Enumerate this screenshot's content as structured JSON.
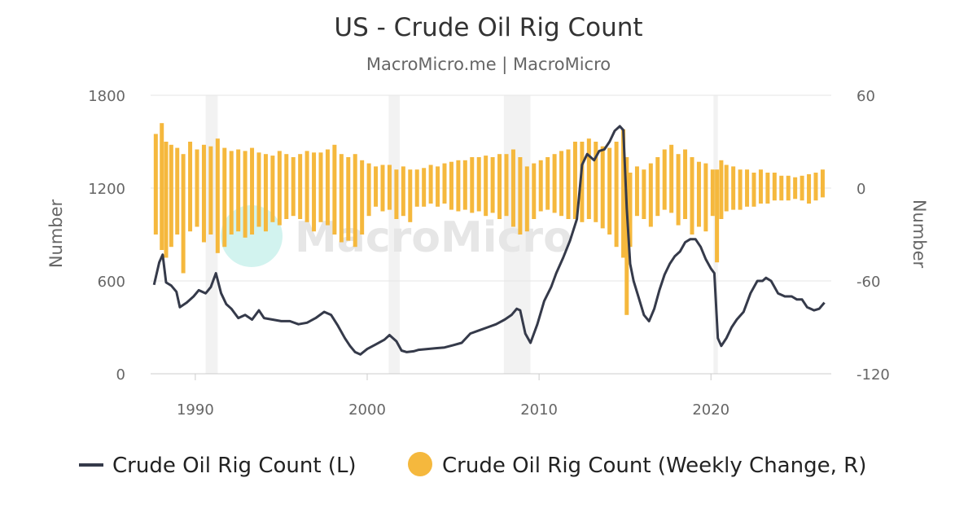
{
  "chart_data": {
    "type": "line",
    "title": "US - Crude Oil Rig Count",
    "subtitle": "MacroMicro.me | MacroMicro",
    "watermark": "MacroMicro",
    "x_ticks": [
      1990,
      2000,
      2010,
      2020
    ],
    "xlim": [
      1987.4,
      2027.0
    ],
    "left_axis": {
      "label": "Number",
      "ticks": [
        "0",
        "600",
        "1200",
        "1800"
      ],
      "ylim": [
        0,
        1800
      ]
    },
    "right_axis": {
      "label": "Number",
      "ticks": [
        "-120",
        "-60",
        "0",
        "60"
      ],
      "ylim": [
        -120,
        60
      ]
    },
    "grid": true,
    "legend_position": "bottom",
    "recession_bands": [
      [
        1990.6,
        1991.3
      ],
      [
        2001.25,
        2001.9
      ],
      [
        2007.95,
        2009.5
      ],
      [
        2020.15,
        2020.4
      ]
    ],
    "series": [
      {
        "name": "Crude Oil Rig Count (L)",
        "type": "line",
        "axis": "left",
        "color": "#353a4a",
        "x": [
          1987.6,
          1987.9,
          1988.1,
          1988.3,
          1988.6,
          1988.9,
          1989.1,
          1989.5,
          1989.9,
          1990.2,
          1990.6,
          1990.9,
          1991.2,
          1991.5,
          1991.8,
          1992.1,
          1992.5,
          1992.9,
          1993.3,
          1993.7,
          1994.0,
          1994.5,
          1995.0,
          1995.5,
          1996.0,
          1996.5,
          1997.0,
          1997.5,
          1997.9,
          1998.3,
          1998.7,
          1999.0,
          1999.3,
          1999.6,
          2000.0,
          2000.5,
          2001.0,
          2001.3,
          2001.7,
          2002.0,
          2002.3,
          2002.7,
          2003.0,
          2003.5,
          2004.0,
          2004.5,
          2005.0,
          2005.5,
          2006.0,
          2006.5,
          2007.0,
          2007.5,
          2008.0,
          2008.4,
          2008.7,
          2008.9,
          2009.2,
          2009.5,
          2009.9,
          2010.3,
          2010.7,
          2011.0,
          2011.4,
          2011.8,
          2012.2,
          2012.5,
          2012.8,
          2013.2,
          2013.5,
          2013.8,
          2014.1,
          2014.4,
          2014.7,
          2014.9,
          2015.1,
          2015.3,
          2015.5,
          2015.8,
          2016.1,
          2016.4,
          2016.7,
          2017.0,
          2017.3,
          2017.6,
          2017.9,
          2018.2,
          2018.5,
          2018.8,
          2019.1,
          2019.4,
          2019.7,
          2020.0,
          2020.2,
          2020.4,
          2020.6,
          2020.9,
          2021.2,
          2021.5,
          2021.9,
          2022.3,
          2022.7,
          2023.0,
          2023.2,
          2023.5,
          2023.9,
          2024.3,
          2024.7,
          2025.0,
          2025.3,
          2025.6,
          2026.0,
          2026.3,
          2026.6
        ],
        "values": [
          575,
          720,
          770,
          590,
          570,
          530,
          430,
          460,
          500,
          540,
          520,
          560,
          650,
          520,
          450,
          420,
          360,
          380,
          350,
          410,
          360,
          350,
          340,
          340,
          320,
          330,
          360,
          400,
          380,
          310,
          230,
          180,
          140,
          125,
          160,
          190,
          220,
          250,
          210,
          150,
          140,
          145,
          155,
          160,
          165,
          170,
          185,
          200,
          260,
          280,
          300,
          320,
          350,
          380,
          420,
          410,
          260,
          200,
          320,
          470,
          560,
          650,
          750,
          860,
          1000,
          1350,
          1420,
          1380,
          1440,
          1450,
          1500,
          1570,
          1600,
          1575,
          1070,
          710,
          600,
          490,
          380,
          340,
          420,
          540,
          640,
          710,
          760,
          790,
          850,
          870,
          870,
          820,
          740,
          680,
          650,
          230,
          180,
          230,
          300,
          350,
          400,
          520,
          600,
          600,
          620,
          600,
          520,
          500,
          500,
          480,
          480,
          430,
          410,
          420,
          460
        ]
      },
      {
        "name": "Crude Oil Rig Count (Weekly Change, R)",
        "type": "bar",
        "axis": "right",
        "color": "#f5b83d",
        "x": [
          1987.7,
          1988.05,
          1988.3,
          1988.6,
          1988.95,
          1989.3,
          1989.7,
          1990.1,
          1990.5,
          1990.9,
          1991.3,
          1991.7,
          1992.1,
          1992.5,
          1992.9,
          1993.3,
          1993.7,
          1994.1,
          1994.5,
          1994.9,
          1995.3,
          1995.7,
          1996.1,
          1996.5,
          1996.9,
          1997.3,
          1997.7,
          1998.1,
          1998.5,
          1998.9,
          1999.3,
          1999.7,
          2000.1,
          2000.5,
          2000.9,
          2001.3,
          2001.7,
          2002.1,
          2002.5,
          2002.9,
          2003.3,
          2003.7,
          2004.1,
          2004.5,
          2004.9,
          2005.3,
          2005.7,
          2006.1,
          2006.5,
          2006.9,
          2007.3,
          2007.7,
          2008.1,
          2008.5,
          2008.9,
          2009.3,
          2009.7,
          2010.1,
          2010.5,
          2010.9,
          2011.3,
          2011.7,
          2012.1,
          2012.5,
          2012.9,
          2013.3,
          2013.7,
          2014.1,
          2014.5,
          2014.9,
          2015.1,
          2015.3,
          2015.7,
          2016.1,
          2016.5,
          2016.9,
          2017.3,
          2017.7,
          2018.1,
          2018.5,
          2018.9,
          2019.3,
          2019.7,
          2020.1,
          2020.35,
          2020.6,
          2020.9,
          2021.3,
          2021.7,
          2022.1,
          2022.5,
          2022.9,
          2023.3,
          2023.7,
          2024.1,
          2024.5,
          2024.9,
          2025.3,
          2025.7,
          2026.1,
          2026.5
        ],
        "high": [
          35,
          42,
          30,
          28,
          26,
          22,
          30,
          25,
          28,
          27,
          32,
          26,
          24,
          25,
          24,
          26,
          23,
          22,
          21,
          24,
          22,
          20,
          22,
          24,
          23,
          23,
          25,
          28,
          22,
          20,
          22,
          18,
          16,
          14,
          15,
          15,
          12,
          14,
          12,
          12,
          13,
          15,
          14,
          16,
          17,
          18,
          18,
          20,
          20,
          21,
          20,
          22,
          22,
          25,
          20,
          14,
          16,
          18,
          20,
          22,
          24,
          25,
          30,
          30,
          32,
          30,
          27,
          26,
          30,
          38,
          20,
          10,
          14,
          12,
          16,
          20,
          25,
          28,
          22,
          25,
          20,
          17,
          16,
          12,
          12,
          18,
          15,
          14,
          12,
          12,
          10,
          12,
          10,
          10,
          8,
          8,
          7,
          8,
          9,
          10,
          12
        ],
        "low": [
          -30,
          -40,
          -45,
          -38,
          -30,
          -55,
          -28,
          -25,
          -35,
          -30,
          -42,
          -38,
          -30,
          -28,
          -32,
          -30,
          -25,
          -28,
          -22,
          -24,
          -20,
          -18,
          -20,
          -22,
          -28,
          -22,
          -24,
          -30,
          -35,
          -34,
          -38,
          -30,
          -18,
          -12,
          -15,
          -14,
          -20,
          -18,
          -22,
          -12,
          -12,
          -10,
          -12,
          -10,
          -14,
          -15,
          -14,
          -16,
          -15,
          -18,
          -16,
          -20,
          -18,
          -25,
          -30,
          -28,
          -20,
          -15,
          -14,
          -16,
          -18,
          -20,
          -20,
          -22,
          -20,
          -22,
          -26,
          -30,
          -38,
          -45,
          -82,
          -38,
          -18,
          -20,
          -25,
          -18,
          -14,
          -16,
          -24,
          -20,
          -30,
          -25,
          -28,
          -18,
          -48,
          -20,
          -15,
          -14,
          -14,
          -12,
          -12,
          -10,
          -10,
          -8,
          -8,
          -8,
          -7,
          -8,
          -10,
          -8,
          -6
        ]
      }
    ]
  }
}
